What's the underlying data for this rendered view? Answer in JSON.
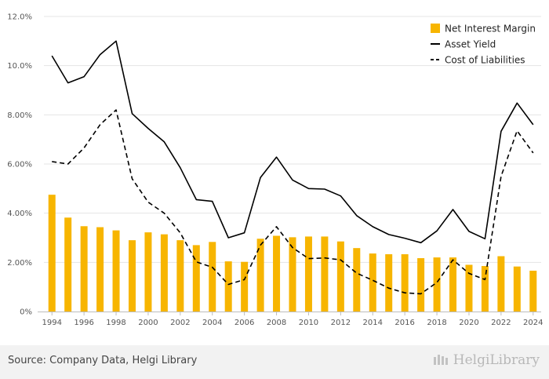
{
  "chart_data": {
    "type": "bar+line",
    "categories": [
      "1994",
      "1995",
      "1996",
      "1997",
      "1998",
      "1999",
      "2000",
      "2001",
      "2002",
      "2003",
      "2004",
      "2005",
      "2006",
      "2007",
      "2008",
      "2009",
      "2010",
      "2011",
      "2012",
      "2013",
      "2014",
      "2015",
      "2016",
      "2017",
      "2018",
      "2019",
      "2020",
      "2021",
      "2022",
      "2023",
      "2024"
    ],
    "x_tick_labels": [
      "1994",
      "1996",
      "1998",
      "2000",
      "2002",
      "2004",
      "2006",
      "2008",
      "2010",
      "2012",
      "2014",
      "2016",
      "2018",
      "2020",
      "2022",
      "2024"
    ],
    "y_tick_labels": [
      "0%",
      "2.00%",
      "4.00%",
      "6.00%",
      "8.00%",
      "10.0%",
      "12.0%"
    ],
    "ylim": [
      0,
      12
    ],
    "grid": true,
    "legend_position": "top-right",
    "series": [
      {
        "name": "Net Interest Margin",
        "kind": "bar",
        "color": "#f7b500",
        "values": [
          4.75,
          3.82,
          3.47,
          3.43,
          3.3,
          2.9,
          3.22,
          3.14,
          2.9,
          2.7,
          2.83,
          2.04,
          2.02,
          2.96,
          3.08,
          3.02,
          3.05,
          3.05,
          2.85,
          2.58,
          2.36,
          2.33,
          2.33,
          2.17,
          2.2,
          2.2,
          1.9,
          1.85,
          2.25,
          1.83,
          1.66
        ]
      },
      {
        "name": "Asset Yield",
        "kind": "line",
        "style": "solid",
        "color": "#000000",
        "values": [
          10.4,
          9.3,
          9.55,
          10.45,
          11.0,
          8.05,
          7.45,
          6.9,
          5.85,
          4.55,
          4.48,
          3.0,
          3.2,
          5.45,
          6.28,
          5.35,
          5.0,
          4.98,
          4.7,
          3.9,
          3.45,
          3.13,
          2.98,
          2.8,
          3.28,
          4.15,
          3.26,
          2.96,
          7.33,
          8.48,
          7.6
        ]
      },
      {
        "name": "Cost of Liabilities",
        "kind": "line",
        "style": "dashed",
        "color": "#000000",
        "values": [
          6.1,
          6.0,
          6.65,
          7.6,
          8.2,
          5.4,
          4.45,
          4.0,
          3.2,
          2.02,
          1.8,
          1.1,
          1.3,
          2.7,
          3.45,
          2.6,
          2.15,
          2.18,
          2.1,
          1.56,
          1.27,
          0.95,
          0.76,
          0.72,
          1.18,
          2.1,
          1.55,
          1.3,
          5.5,
          7.35,
          6.45
        ]
      }
    ]
  },
  "footer": {
    "source": "Source: Company Data, Helgi Library",
    "logo_text": "HelgiLibrary"
  }
}
